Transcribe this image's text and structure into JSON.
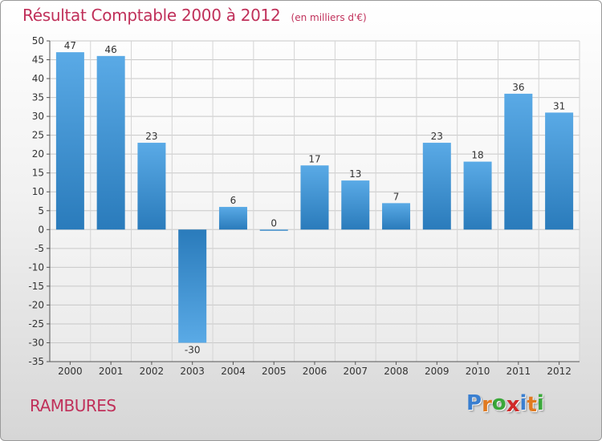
{
  "chart_data": {
    "type": "bar",
    "title": "Résultat Comptable 2000 à 2012",
    "subtitle": "(en milliers d'€)",
    "categories": [
      "2000",
      "2001",
      "2002",
      "2003",
      "2004",
      "2005",
      "2006",
      "2007",
      "2008",
      "2009",
      "2010",
      "2011",
      "2012"
    ],
    "values": [
      47,
      46,
      23,
      -30,
      6,
      0,
      17,
      13,
      7,
      23,
      18,
      36,
      31
    ],
    "value_labels": [
      "47",
      "46",
      "23",
      "-30",
      "6",
      "0",
      "17",
      "13",
      "7",
      "23",
      "18",
      "36",
      "31"
    ],
    "ylim": [
      -35,
      50
    ],
    "yticks": [
      50,
      45,
      40,
      35,
      30,
      25,
      20,
      15,
      10,
      5,
      0,
      -5,
      -10,
      -15,
      -20,
      -25,
      -30,
      -35
    ],
    "grid": true,
    "xlabel": "",
    "ylabel": "",
    "colors": {
      "bar_light": "#5aaae6",
      "bar_dark": "#2a7bbb",
      "title": "#c0305a"
    }
  },
  "commune": "RAMBURES",
  "logo": {
    "letters": [
      "P",
      "r",
      "o",
      "x",
      "i",
      "t",
      "i"
    ],
    "colors": [
      "#3a7fd0",
      "#e07a20",
      "#3aa83a",
      "#d02a2a",
      "#3a7fd0",
      "#e07a20",
      "#3aa83a"
    ]
  }
}
